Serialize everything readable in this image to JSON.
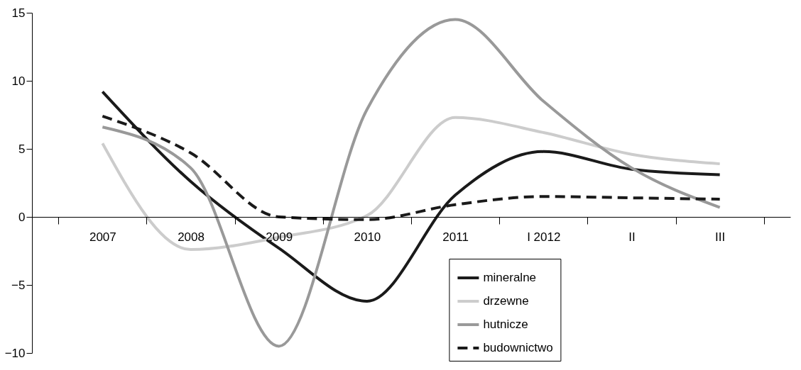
{
  "chart_data": {
    "type": "line",
    "categories": [
      "2007",
      "2008",
      "2009",
      "2010",
      "2011",
      "I 2012",
      "II",
      "III"
    ],
    "series": [
      {
        "name": "mineralne",
        "color": "#1a1a1a",
        "values": [
          9.2,
          2.6,
          -2.3,
          -6.2,
          1.6,
          4.8,
          3.5,
          3.1
        ]
      },
      {
        "name": "drzewne",
        "color": "#cccccc",
        "values": [
          5.4,
          -2.4,
          -1.5,
          0.1,
          7.3,
          6.2,
          4.6,
          3.9
        ]
      },
      {
        "name": "hutnicze",
        "color": "#999999",
        "values": [
          6.6,
          3.6,
          -9.5,
          7.9,
          14.5,
          8.5,
          3.6,
          0.7
        ]
      },
      {
        "name": "budownictwo",
        "color": "#1a1a1a",
        "line_style": "dashed",
        "values": [
          7.4,
          4.7,
          0.0,
          -0.2,
          0.9,
          1.5,
          1.4,
          1.3
        ]
      }
    ],
    "ylim": [
      -10,
      15
    ],
    "yticks": [
      -10,
      -5,
      0,
      5,
      10,
      15
    ],
    "grid": false,
    "legend": "bottom right",
    "line_style": "solid",
    "marker": "none"
  }
}
